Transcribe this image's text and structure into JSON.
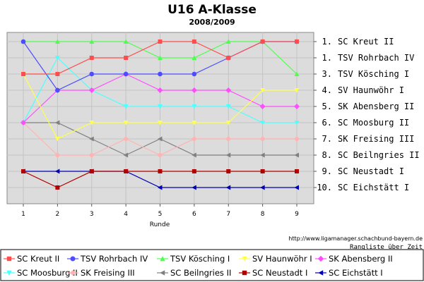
{
  "chart_data": {
    "type": "line",
    "title": "U16 A-Klasse",
    "subtitle": "2008/2009",
    "xlabel": "Runde",
    "x": [
      1,
      2,
      3,
      4,
      5,
      6,
      7,
      8,
      9
    ],
    "ylim": [
      1,
      10
    ],
    "y_reversed": true,
    "y_tick_labels": [
      "1. SC Kreut II",
      "1. TSV Rohrbach IV",
      "3. TSV Kösching I",
      "4. SV Haunwöhr I",
      "5. SK Abensberg II",
      "6. SC Moosburg II",
      "7. SK Freising III",
      "8. SC Beilngries II",
      "9. SC Neustadt I",
      "10. SC Eichstätt I"
    ],
    "grid": true,
    "background": "#dcdcdc",
    "legend_position": "bottom",
    "series": [
      {
        "name": "SC Kreut II",
        "color": "#ff4d4d",
        "marker": "square",
        "values": [
          3,
          3,
          2,
          2,
          1,
          1,
          2,
          1,
          1
        ]
      },
      {
        "name": "TSV Rohrbach IV",
        "color": "#4d4dff",
        "marker": "circle",
        "values": [
          1,
          4,
          3,
          3,
          3,
          3,
          2,
          1,
          1
        ]
      },
      {
        "name": "TSV Kösching I",
        "color": "#4dff4d",
        "marker": "triangle-up",
        "values": [
          1,
          1,
          1,
          1,
          2,
          2,
          1,
          1,
          3
        ]
      },
      {
        "name": "SV Haunwöhr I",
        "color": "#ffff4d",
        "marker": "triangle-down",
        "values": [
          3,
          7,
          6,
          6,
          6,
          6,
          6,
          4,
          4
        ]
      },
      {
        "name": "SK Abensberg II",
        "color": "#ff4dff",
        "marker": "diamond",
        "values": [
          6,
          4,
          4,
          3,
          4,
          4,
          4,
          5,
          5
        ]
      },
      {
        "name": "SC Moosburg II",
        "color": "#4dffff",
        "marker": "triangle-down",
        "values": [
          6,
          2,
          4,
          5,
          5,
          5,
          5,
          6,
          6
        ]
      },
      {
        "name": "SK Freising III",
        "color": "#ffb3b3",
        "marker": "diamond",
        "values": [
          6,
          8,
          8,
          7,
          8,
          7,
          7,
          7,
          7
        ]
      },
      {
        "name": "SC Beilngries II",
        "color": "#808080",
        "marker": "triangle-left",
        "values": [
          6,
          6,
          7,
          8,
          7,
          8,
          8,
          8,
          8
        ]
      },
      {
        "name": "SC Neustadt I",
        "color": "#b30000",
        "marker": "square",
        "values": [
          9,
          10,
          9,
          9,
          9,
          9,
          9,
          9,
          9
        ]
      },
      {
        "name": "SC Eichstätt I",
        "color": "#0000b3",
        "marker": "triangle-left",
        "values": [
          9,
          9,
          9,
          9,
          10,
          10,
          10,
          10,
          10
        ]
      }
    ]
  },
  "footer": {
    "url": "http://www.ligamanager.schachbund-bayern.de",
    "caption": "Rangliste über Zeit"
  }
}
